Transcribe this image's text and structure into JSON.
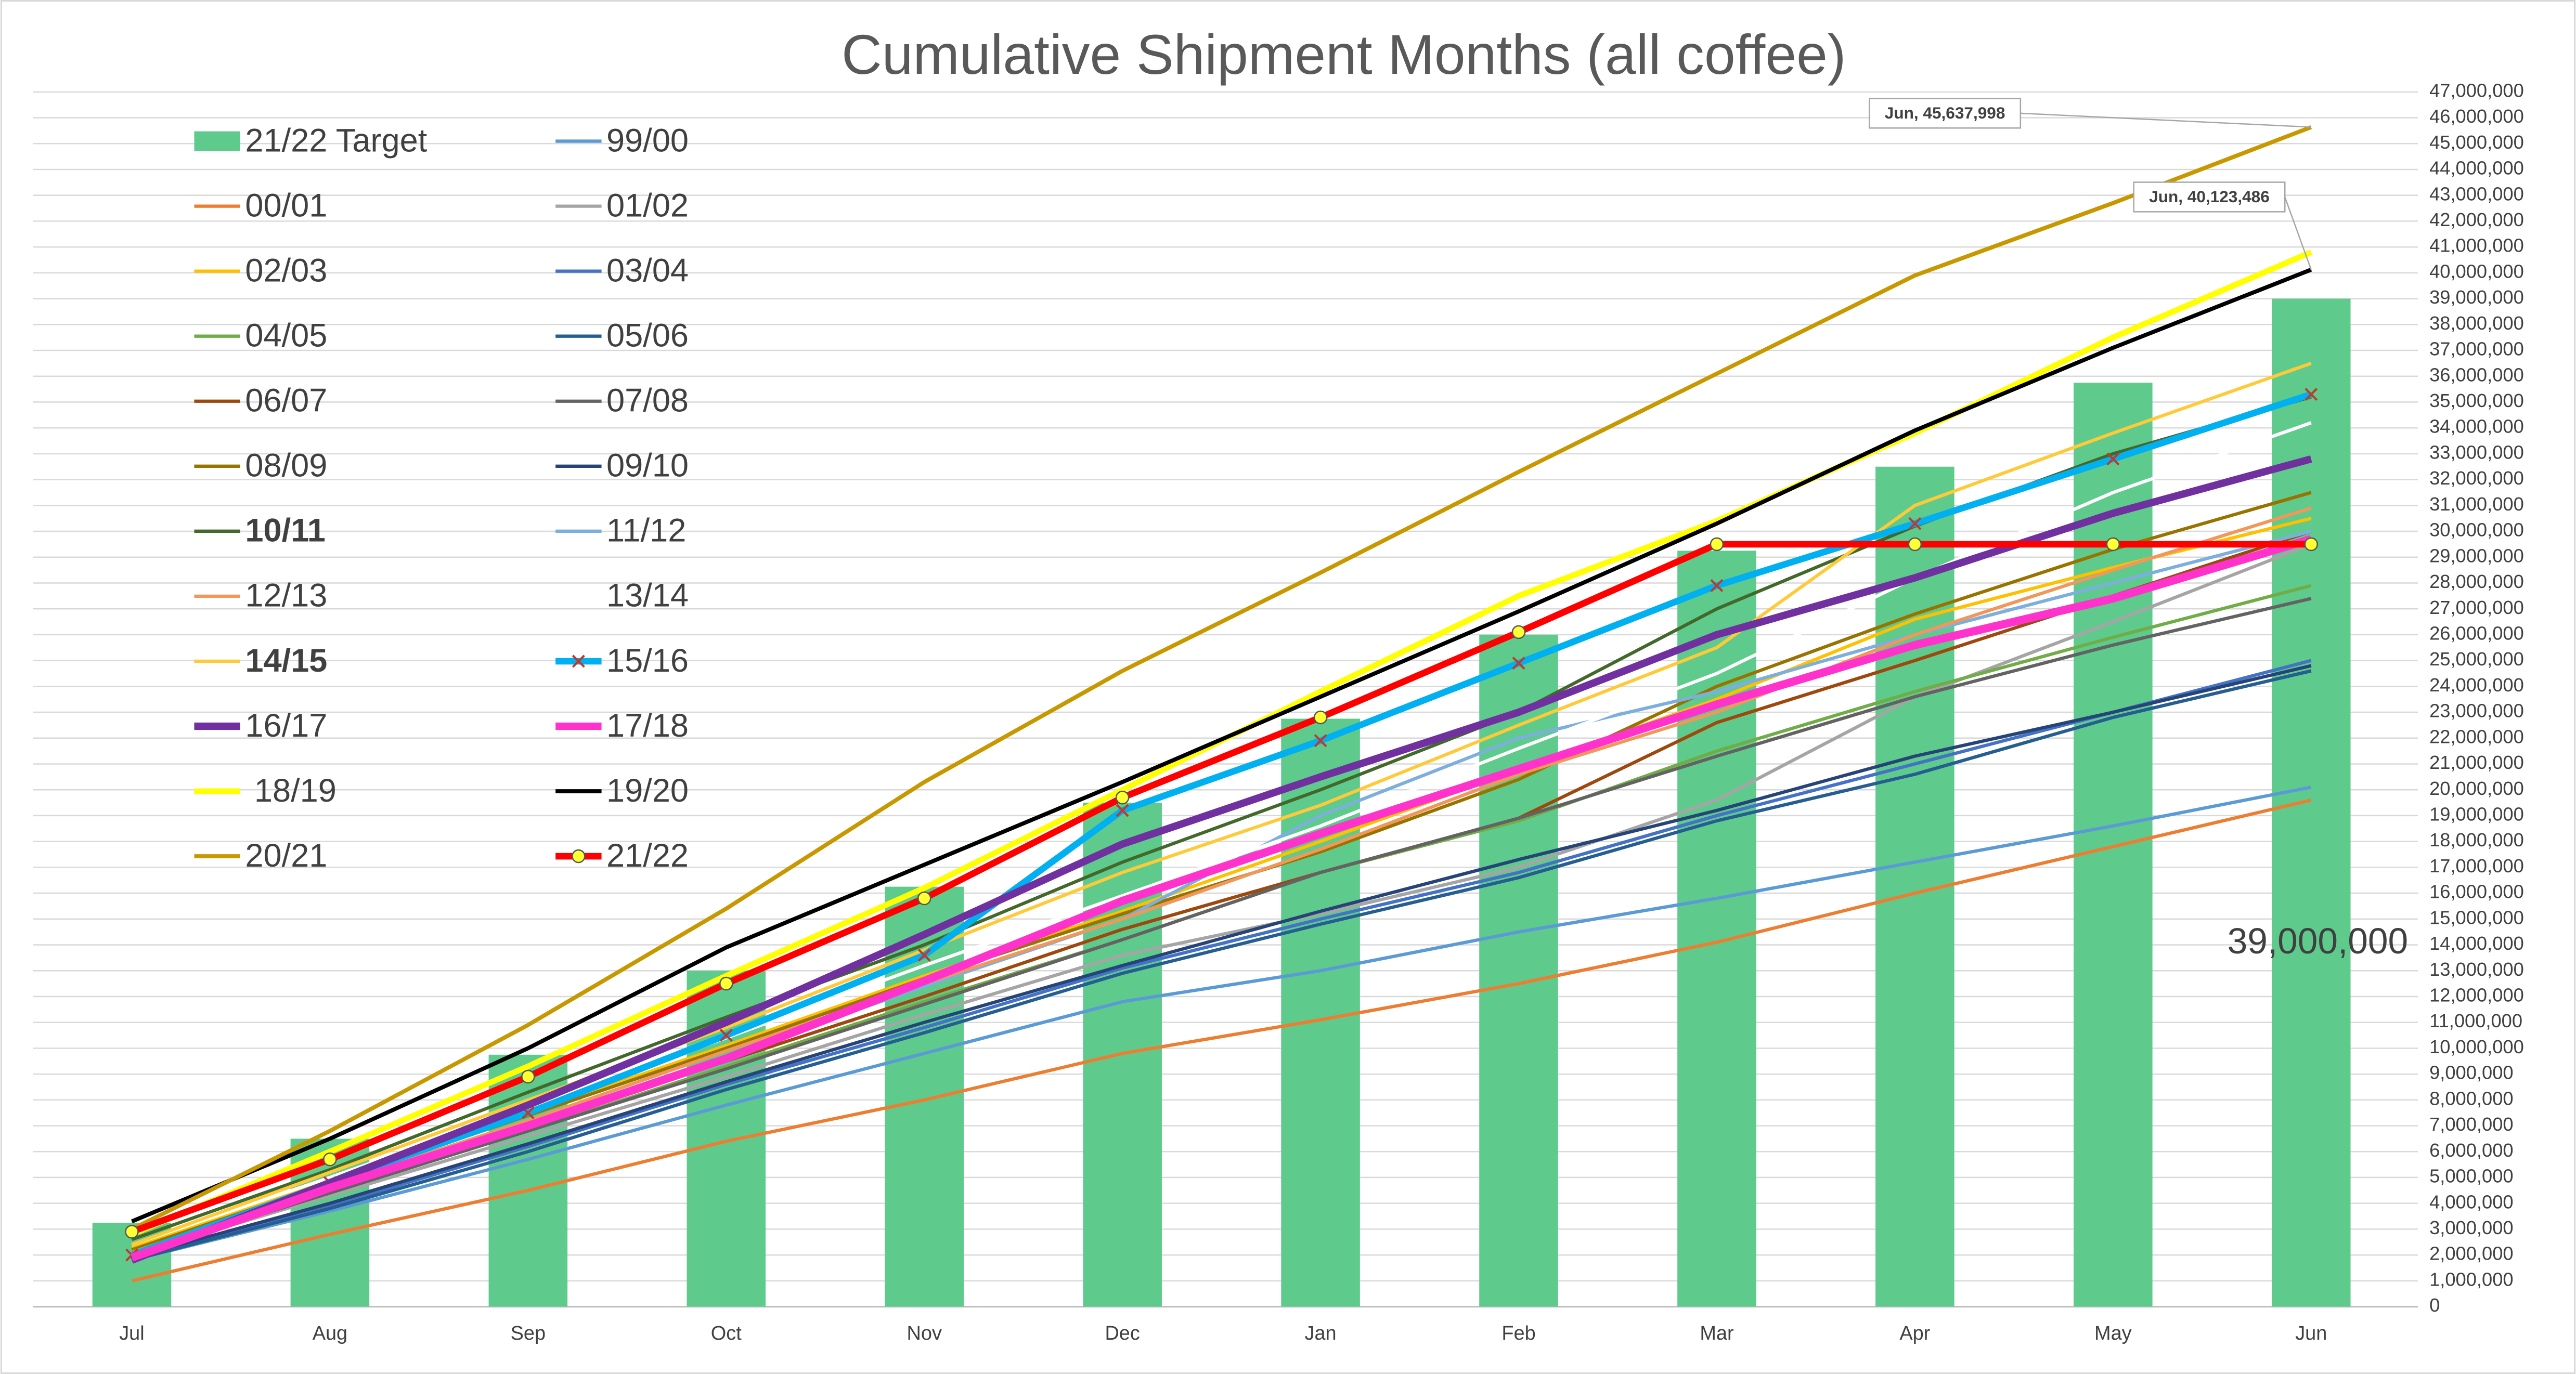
{
  "chart_data": {
    "type": "combo",
    "title": "Cumulative Shipment Months (all coffee)",
    "categories": [
      "Jul",
      "Aug",
      "Sep",
      "Oct",
      "Nov",
      "Dec",
      "Jan",
      "Feb",
      "Mar",
      "Apr",
      "May",
      "Jun"
    ],
    "ylim": [
      0,
      47000000
    ],
    "yticks": [
      0,
      {
        "value": 1000000,
        "label": "1,000,000"
      },
      {
        "value": 2000000,
        "label": "2,000,000"
      },
      {
        "value": 3000000,
        "label": "3,000,000"
      },
      {
        "value": 4000000,
        "label": "4,000,000"
      },
      {
        "value": 5000000,
        "label": "5,000,000"
      },
      {
        "value": 6000000,
        "label": "6,000,000"
      },
      {
        "value": 7000000,
        "label": "7,000,000"
      },
      {
        "value": 8000000,
        "label": "8,000,000"
      },
      {
        "value": 9000000,
        "label": "9,000,000"
      },
      {
        "value": 10000000,
        "label": "10,000,000"
      },
      {
        "value": 11000000,
        "label": "11,000,000"
      },
      {
        "value": 12000000,
        "label": "12,000,000"
      },
      {
        "value": 13000000,
        "label": "13,000,000"
      },
      {
        "value": 14000000,
        "label": "14,000,000"
      },
      {
        "value": 15000000,
        "label": "15,000,000"
      },
      {
        "value": 16000000,
        "label": "16,000,000"
      },
      {
        "value": 17000000,
        "label": "17,000,000"
      },
      {
        "value": 18000000,
        "label": "18,000,000"
      },
      {
        "value": 19000000,
        "label": "19,000,000"
      },
      {
        "value": 20000000,
        "label": "20,000,000"
      },
      {
        "value": 21000000,
        "label": "21,000,000"
      },
      {
        "value": 22000000,
        "label": "22,000,000"
      },
      {
        "value": 23000000,
        "label": "23,000,000"
      },
      {
        "value": 24000000,
        "label": "24,000,000"
      },
      {
        "value": 25000000,
        "label": "25,000,000"
      },
      {
        "value": 26000000,
        "label": "26,000,000"
      },
      {
        "value": 27000000,
        "label": "27,000,000"
      },
      {
        "value": 28000000,
        "label": "28,000,000"
      },
      {
        "value": 29000000,
        "label": "29,000,000"
      },
      {
        "value": 30000000,
        "label": "30,000,000"
      },
      {
        "value": 31000000,
        "label": "31,000,000"
      },
      {
        "value": 32000000,
        "label": "32,000,000"
      },
      {
        "value": 33000000,
        "label": "33,000,000"
      },
      {
        "value": 34000000,
        "label": "34,000,000"
      },
      {
        "value": 35000000,
        "label": "35,000,000"
      },
      {
        "value": 36000000,
        "label": "36,000,000"
      },
      {
        "value": 37000000,
        "label": "37,000,000"
      },
      {
        "value": 38000000,
        "label": "38,000,000"
      },
      {
        "value": 39000000,
        "label": "39,000,000"
      },
      {
        "value": 40000000,
        "label": "40,000,000"
      },
      {
        "value": 41000000,
        "label": "41,000,000"
      },
      {
        "value": 42000000,
        "label": "42,000,000"
      },
      {
        "value": 43000000,
        "label": "43,000,000"
      },
      {
        "value": 44000000,
        "label": "44,000,000"
      },
      {
        "value": 45000000,
        "label": "45,000,000"
      },
      {
        "value": 46000000,
        "label": "46,000,000"
      },
      {
        "value": 47000000,
        "label": "47,000,000"
      }
    ],
    "grid": true,
    "legend": "upper left",
    "series": [
      {
        "name": "21/22 Target",
        "type": "bar",
        "color": "#5ecb8c",
        "values": [
          3250000,
          6500000,
          9750000,
          13000000,
          16250000,
          19500000,
          22750000,
          26000000,
          29250000,
          32500000,
          35750000,
          39000000
        ],
        "value_labels": [
          null,
          null,
          null,
          null,
          null,
          null,
          null,
          null,
          null,
          null,
          null,
          "39,000,000"
        ]
      },
      {
        "name": "99/00",
        "type": "line",
        "color": "#5b9bd5",
        "line_width": 2,
        "values": [
          1800000,
          3700000,
          5700000,
          7800000,
          9800000,
          11800000,
          13000000,
          14500000,
          15800000,
          17200000,
          18600000,
          20100000
        ]
      },
      {
        "name": "00/01",
        "type": "line",
        "color": "#ed7d31",
        "line_width": 2,
        "values": [
          1000000,
          2800000,
          4500000,
          6400000,
          8000000,
          9800000,
          11100000,
          12500000,
          14100000,
          16000000,
          17800000,
          19600000
        ]
      },
      {
        "name": "01/02",
        "type": "line",
        "color": "#a5a5a5",
        "line_width": 2,
        "values": [
          2000000,
          4300000,
          6600000,
          8900000,
          11300000,
          13600000,
          15200000,
          17000000,
          19600000,
          23600000,
          26500000,
          29500000
        ]
      },
      {
        "name": "02/03",
        "type": "line",
        "color": "#ffc000",
        "line_width": 2,
        "values": [
          2300000,
          4900000,
          7500000,
          10100000,
          12800000,
          15300000,
          18000000,
          20800000,
          23500000,
          26600000,
          28600000,
          30500000
        ]
      },
      {
        "name": "03/04",
        "type": "line",
        "color": "#4472c4",
        "line_width": 2,
        "values": [
          1900000,
          3900000,
          6200000,
          8600000,
          10800000,
          13100000,
          15000000,
          16800000,
          19000000,
          21000000,
          23000000,
          25000000
        ]
      },
      {
        "name": "04/05",
        "type": "line",
        "color": "#70ad47",
        "line_width": 2,
        "values": [
          2000000,
          4400000,
          6800000,
          9300000,
          11800000,
          14200000,
          16800000,
          18800000,
          21500000,
          23800000,
          25900000,
          27900000
        ]
      },
      {
        "name": "05/06",
        "type": "line",
        "color": "#255e91",
        "line_width": 2,
        "values": [
          1800000,
          3800000,
          6000000,
          8400000,
          10600000,
          12900000,
          14800000,
          16600000,
          18800000,
          20600000,
          22800000,
          24600000
        ]
      },
      {
        "name": "06/07",
        "type": "line",
        "color": "#9e480e",
        "line_width": 2,
        "values": [
          2100000,
          4500000,
          7000000,
          9500000,
          12000000,
          14600000,
          16800000,
          18900000,
          22600000,
          25000000,
          27500000,
          30000000
        ]
      },
      {
        "name": "07/08",
        "type": "line",
        "color": "#636363",
        "line_width": 2,
        "values": [
          2000000,
          4400000,
          6800000,
          9200000,
          11700000,
          14200000,
          16800000,
          18900000,
          21300000,
          23600000,
          25600000,
          27400000
        ]
      },
      {
        "name": "08/09",
        "type": "line",
        "color": "#997300",
        "line_width": 2,
        "values": [
          2200000,
          4800000,
          7400000,
          10000000,
          12700000,
          15200000,
          17600000,
          20400000,
          24000000,
          26800000,
          29300000,
          31500000
        ]
      },
      {
        "name": "09/10",
        "type": "line",
        "color": "#264478",
        "line_width": 2,
        "values": [
          1900000,
          4000000,
          6300000,
          8700000,
          11000000,
          13200000,
          15300000,
          17300000,
          19200000,
          21300000,
          23000000,
          24800000
        ]
      },
      {
        "name": "10/11",
        "type": "line",
        "color": "#43682b",
        "line_width": 2,
        "bold": true,
        "values": [
          2600000,
          5300000,
          8300000,
          11200000,
          14000000,
          17200000,
          20000000,
          23000000,
          27000000,
          30200000,
          33000000,
          35200000
        ]
      },
      {
        "name": "11/12",
        "type": "line",
        "color": "#7cafdd",
        "line_width": 2,
        "values": [
          2000000,
          4600000,
          7100000,
          9700000,
          12400000,
          15000000,
          19000000,
          22000000,
          23800000,
          26000000,
          28000000,
          30000000
        ]
      },
      {
        "name": "12/13",
        "type": "line",
        "color": "#f1975a",
        "line_width": 2,
        "values": [
          2100000,
          4700000,
          7200000,
          9900000,
          12500000,
          15000000,
          17700000,
          20600000,
          23000000,
          26000000,
          28500000,
          30900000
        ]
      },
      {
        "name": "13/14",
        "type": "line",
        "color": "#ffffff",
        "line_width": 2,
        "values": [
          2400000,
          5000000,
          7700000,
          10400000,
          13200000,
          15900000,
          18600000,
          21600000,
          24500000,
          28200000,
          31500000,
          34200000
        ]
      },
      {
        "name": "14/15",
        "type": "line",
        "color": "#ffca3a",
        "line_width": 2,
        "bold": true,
        "values": [
          2400000,
          5200000,
          8000000,
          10800000,
          13800000,
          16800000,
          19400000,
          22500000,
          25500000,
          31000000,
          33800000,
          36500000
        ]
      },
      {
        "name": "15/16",
        "type": "line",
        "color": "#00b0f0",
        "line_width": 4,
        "marker": "x",
        "marker_color": "#c0392b",
        "values": [
          2000000,
          4800000,
          7500000,
          10500000,
          13600000,
          19200000,
          21900000,
          24900000,
          27900000,
          30300000,
          32800000,
          35300000
        ]
      },
      {
        "name": "16/17",
        "type": "line",
        "color": "#7030a0",
        "line_width": 4.5,
        "values": [
          1800000,
          4800000,
          7800000,
          11000000,
          14400000,
          17900000,
          20500000,
          23000000,
          26000000,
          28200000,
          30700000,
          32800000
        ]
      },
      {
        "name": "17/18",
        "type": "line",
        "color": "#ff33cc",
        "line_width": 5,
        "values": [
          1900000,
          4600000,
          7000000,
          9600000,
          12600000,
          15700000,
          18300000,
          20800000,
          23300000,
          25600000,
          27400000,
          29700000
        ]
      },
      {
        "name": " 18/19",
        "type": "line",
        "color": "#ffff00",
        "line_width": 3.5,
        "values": [
          2800000,
          6000000,
          9300000,
          12800000,
          16200000,
          20000000,
          23800000,
          27500000,
          30400000,
          33800000,
          37500000,
          40800000
        ]
      },
      {
        "name": "19/20",
        "type": "line",
        "color": "#000000",
        "line_width": 2.5,
        "values": [
          3300000,
          6500000,
          10000000,
          13900000,
          17100000,
          20300000,
          23600000,
          26900000,
          30300000,
          33900000,
          37100000,
          40123486
        ],
        "value_labels": [
          null,
          null,
          null,
          null,
          null,
          null,
          null,
          null,
          null,
          null,
          null,
          "Jun, 40,123,486"
        ]
      },
      {
        "name": "20/21",
        "type": "line",
        "color": "#c89800",
        "line_width": 2.5,
        "values": [
          3000000,
          6800000,
          10900000,
          15400000,
          20300000,
          24600000,
          28400000,
          32300000,
          36100000,
          39900000,
          42700000,
          45637998
        ],
        "value_labels": [
          null,
          null,
          null,
          null,
          null,
          null,
          null,
          null,
          null,
          null,
          null,
          "Jun, 45,637,998"
        ]
      },
      {
        "name": "21/22",
        "type": "line",
        "color": "#ff0000",
        "line_width": 4,
        "marker": "circle",
        "marker_color": "#ffff33",
        "values": [
          2900000,
          5700000,
          8900000,
          12500000,
          15800000,
          19700000,
          22800000,
          26100000,
          29500000,
          29500000,
          29500000,
          29500000
        ]
      }
    ]
  }
}
